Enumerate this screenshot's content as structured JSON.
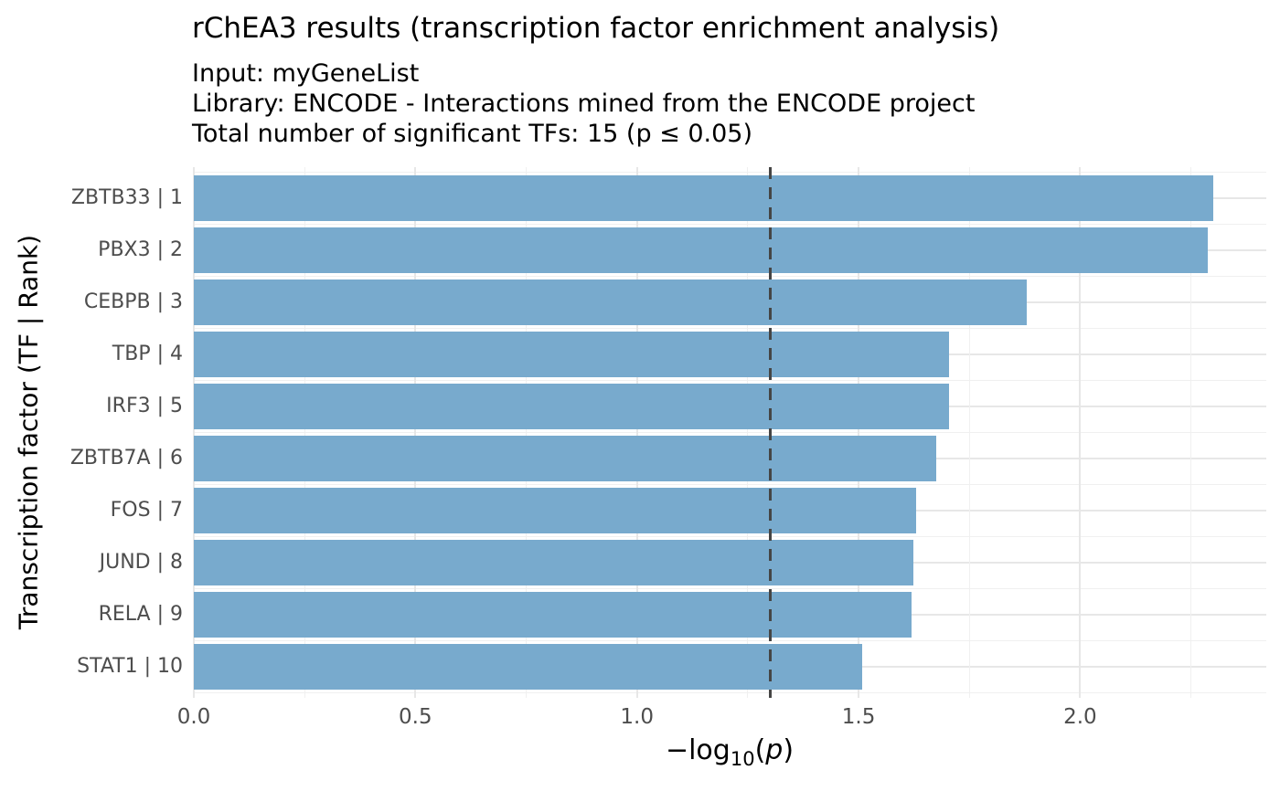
{
  "header": {
    "title": "rChEA3 results (transcription factor enrichment analysis)",
    "subtitles": {
      "input": "Input: myGeneList",
      "library": "Library: ENCODE - Interactions mined from the ENCODE project",
      "total": "Total number of significant TFs: 15 (p ≤ 0.05)"
    }
  },
  "chart_data": {
    "type": "bar",
    "orientation": "horizontal",
    "title": "rChEA3 results (transcription factor enrichment analysis)",
    "subtitle_lines": [
      "Input: myGeneList",
      "Library: ENCODE - Interactions mined from the ENCODE project",
      "Total number of significant TFs: 15 (p ≤ 0.05)"
    ],
    "categories": [
      "ZBTB33 | 1",
      "PBX3 | 2",
      "CEBPB | 3",
      "TBP | 4",
      "IRF3 | 5",
      "ZBTB7A | 6",
      "FOS | 7",
      "JUND | 8",
      "RELA | 9",
      "STAT1 | 10"
    ],
    "values": [
      2.3,
      2.287,
      1.88,
      1.705,
      1.705,
      1.676,
      1.629,
      1.623,
      1.619,
      1.509
    ],
    "xlabel": "-log10(p)",
    "xlabel_parts": {
      "prefix": "−log",
      "subscript": "10",
      "open_paren": "(",
      "variable": "p",
      "close_paren": ")"
    },
    "ylabel": "Transcription factor (TF | Rank)",
    "xlim": [
      0,
      2.42
    ],
    "x_major_ticks": [
      0,
      0.5,
      1,
      1.5,
      2
    ],
    "x_tick_labels": [
      "0.0",
      "0.5",
      "1.0",
      "1.5",
      "2.0"
    ],
    "x_minor_ticks": [
      0.25,
      0.75,
      1.25,
      1.75,
      2.25
    ],
    "significance_line": {
      "value": 1.301,
      "style": "dashed",
      "meaning": "p = 0.05 threshold"
    },
    "grid": "major and minor, light gray, no axis lines",
    "legend": false
  },
  "colors": {
    "bar": "#78AACD",
    "background": "#FFFFFF",
    "grid_major": "#E7E7E7",
    "grid_minor": "#F0F0F0",
    "threshold_line": "#454545",
    "tick_label": "#4D4D4D",
    "text": "#000000"
  }
}
